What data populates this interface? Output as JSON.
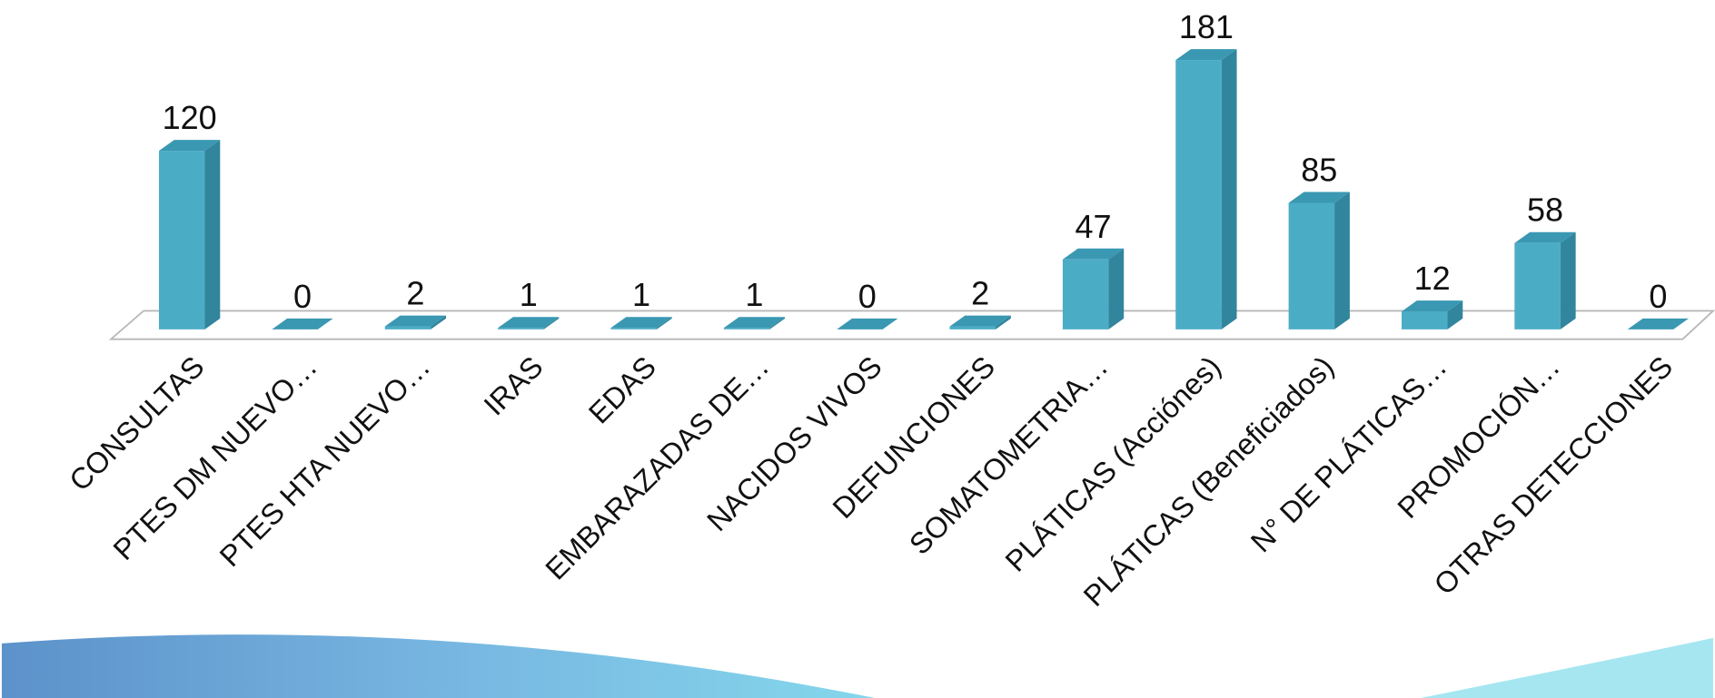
{
  "chart_data": {
    "type": "bar3d",
    "categories": [
      "CONSULTAS",
      "PTES DM NUEVO…",
      "PTES HTA NUEVO…",
      "IRAS",
      "EDAS",
      "EMBARAZADAS DE…",
      "NACIDOS VIVOS",
      "DEFUNCIONES",
      "SOMATOMETRIA…",
      "PLÁTICAS (Acciónes)",
      "PLÁTICAS (Beneficiados)",
      "N° DE PLÁTICAS…",
      "PROMOCIÓN…",
      "OTRAS DETECCIONES"
    ],
    "values": [
      120,
      0,
      2,
      1,
      1,
      1,
      0,
      2,
      47,
      181,
      85,
      12,
      58,
      0
    ],
    "color": "#4bacc6"
  }
}
